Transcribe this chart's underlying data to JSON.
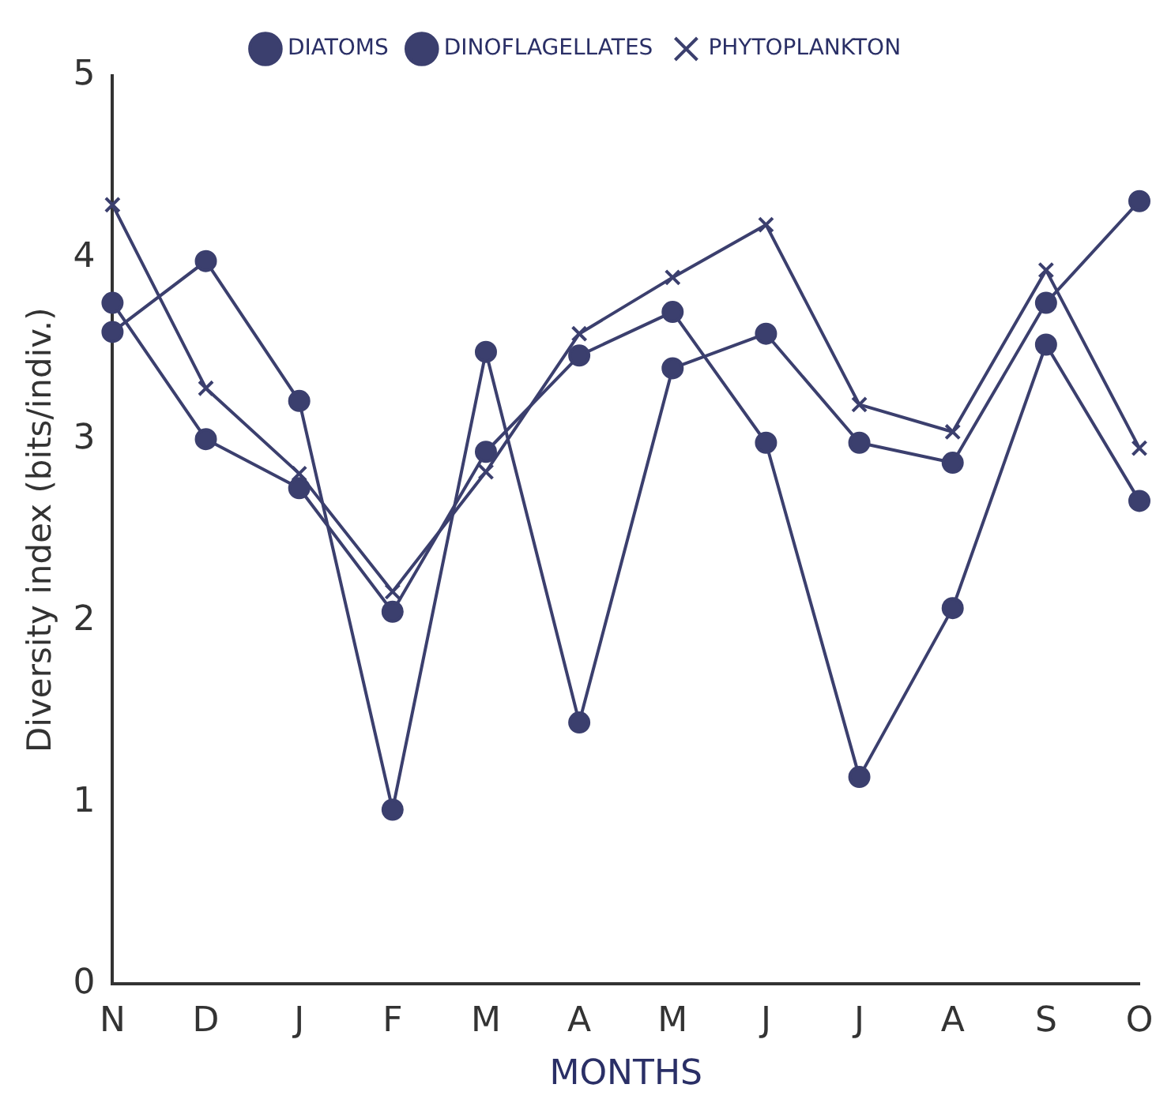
{
  "chart_data": {
    "type": "line",
    "xlabel": "MONTHS",
    "ylabel": "Diversity index (bits/indiv.)",
    "categories": [
      "N",
      "D",
      "J",
      "F",
      "M",
      "A",
      "M",
      "J",
      "J",
      "A",
      "S",
      "O"
    ],
    "ylim": [
      0,
      5
    ],
    "yticks": [
      0,
      1,
      2,
      3,
      4,
      5
    ],
    "grid": false,
    "legend": "top",
    "line_style": "solid",
    "series": [
      {
        "name": "DIATOMS",
        "color": "#3b3f6e",
        "marker": "circle",
        "values": [
          3.75,
          3.0,
          2.73,
          2.05,
          2.93,
          3.46,
          3.7,
          2.98,
          1.14,
          2.07,
          3.52,
          2.66
        ]
      },
      {
        "name": "DINOFLAGELLATES",
        "color": "#3b3f6e",
        "marker": "circle",
        "values": [
          3.59,
          3.98,
          3.21,
          0.96,
          3.48,
          1.44,
          3.39,
          3.58,
          2.98,
          2.87,
          3.75,
          4.31
        ]
      },
      {
        "name": "PHYTOPLANKTON",
        "color": "#3b3f6e",
        "marker": "cross",
        "values": [
          4.29,
          3.28,
          2.81,
          2.16,
          2.82,
          3.58,
          3.89,
          4.18,
          3.19,
          3.04,
          3.93,
          2.95
        ]
      }
    ]
  }
}
